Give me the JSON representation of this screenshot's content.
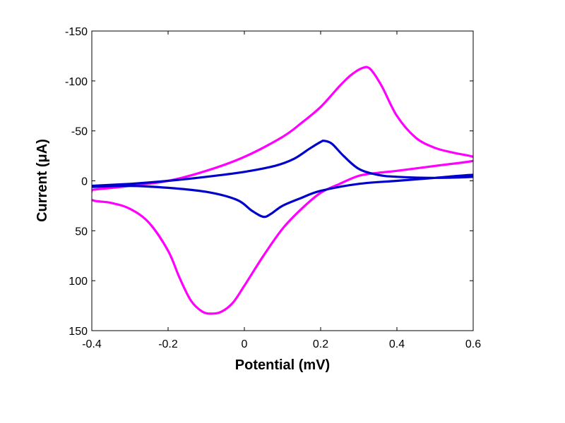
{
  "chart_data": {
    "type": "line",
    "title": "",
    "xlabel": "Potential (mV)",
    "ylabel": "Current (μA)",
    "xlim": [
      -0.4,
      0.6
    ],
    "ylim": [
      150,
      -150
    ],
    "y_axis_reversed": true,
    "grid": false,
    "legend": "none",
    "x_ticks": [
      -0.4,
      -0.2,
      0,
      0.2,
      0.4,
      0.6
    ],
    "x_tick_labels": [
      "-0.4",
      "-0.2",
      "0",
      "0.2",
      "0.4",
      "0.6"
    ],
    "y_ticks": [
      -150,
      -100,
      -50,
      0,
      50,
      100,
      150
    ],
    "y_tick_labels": [
      "-150",
      "-100",
      "-50",
      "0",
      "50",
      "100",
      "150"
    ],
    "series": [
      {
        "color": "#ff00ff",
        "x": [
          -0.4,
          -0.3,
          -0.2,
          -0.1,
          0.0,
          0.1,
          0.15,
          0.2,
          0.25,
          0.28,
          0.31,
          0.33,
          0.36,
          0.4,
          0.45,
          0.5,
          0.55,
          0.6,
          0.6,
          0.5,
          0.4,
          0.35,
          0.3,
          0.25,
          0.2,
          0.15,
          0.1,
          0.05,
          0.0,
          -0.03,
          -0.06,
          -0.085,
          -0.11,
          -0.14,
          -0.17,
          -0.2,
          -0.25,
          -0.3,
          -0.35,
          -0.4
        ],
        "y": [
          9,
          5,
          0,
          -10,
          -24,
          -44,
          -58,
          -74,
          -95,
          -106,
          -113,
          -112,
          -95,
          -65,
          -43,
          -33,
          -28,
          -24,
          -20,
          -15,
          -10,
          -8,
          -5,
          3,
          12,
          28,
          48,
          75,
          105,
          122,
          131,
          133,
          131,
          120,
          97,
          70,
          42,
          28,
          22,
          19
        ]
      },
      {
        "color": "#0000cc",
        "x": [
          -0.4,
          -0.3,
          -0.2,
          -0.1,
          0.0,
          0.08,
          0.13,
          0.17,
          0.2,
          0.21,
          0.23,
          0.26,
          0.3,
          0.35,
          0.4,
          0.5,
          0.6,
          0.6,
          0.5,
          0.4,
          0.3,
          0.2,
          0.15,
          0.1,
          0.07,
          0.05,
          0.02,
          -0.02,
          -0.1,
          -0.2,
          -0.3,
          -0.4
        ],
        "y": [
          5,
          3,
          0,
          -4,
          -9,
          -15,
          -22,
          -32,
          -39,
          -40,
          -37,
          -25,
          -12,
          -6,
          -4,
          -3,
          -4,
          -6,
          -3,
          0,
          3,
          10,
          17,
          25,
          33,
          36,
          30,
          19,
          11,
          7,
          5,
          6
        ]
      }
    ]
  }
}
